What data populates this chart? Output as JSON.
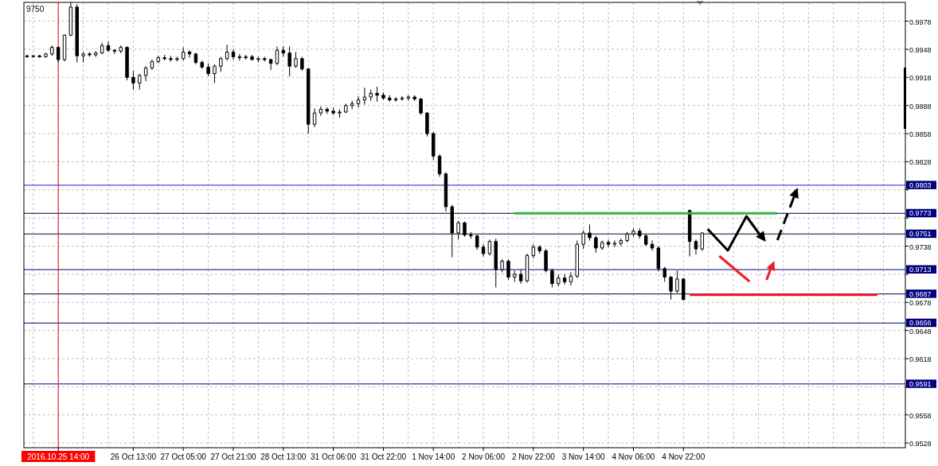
{
  "chart_data": {
    "type": "candlestick",
    "categories": [
      null,
      null,
      null,
      null,
      null,
      "2016.10.25 14:00",
      null,
      null,
      null,
      null,
      null,
      null,
      null,
      null,
      null,
      null,
      null,
      "26 Oct 13:00",
      null,
      null,
      null,
      null,
      null,
      null,
      null,
      "27 Oct 05:00",
      null,
      null,
      null,
      null,
      null,
      null,
      null,
      "27 Oct 21:00",
      null,
      null,
      null,
      null,
      null,
      null,
      null,
      "28 Oct 13:00",
      null,
      null,
      null,
      null,
      null,
      null,
      null,
      "31 Oct 06:00",
      null,
      null,
      null,
      null,
      null,
      null,
      null,
      "31 Oct 22:00",
      null,
      null,
      null,
      null,
      null,
      null,
      null,
      "1 Nov 14:00",
      null,
      null,
      null,
      null,
      null,
      null,
      null,
      "2 Nov 06:00",
      null,
      null,
      null,
      null,
      null,
      null,
      null,
      "2 Nov 22:00",
      null,
      null,
      null,
      null,
      null,
      null,
      null,
      "3 Nov 14:00",
      null,
      null,
      null,
      null,
      null,
      null,
      null,
      "4 Nov 06:00",
      null,
      null,
      null,
      null,
      null,
      null,
      null,
      "4 Nov 22:00",
      null,
      null,
      null,
      null,
      null,
      null,
      null,
      null,
      null,
      null,
      null,
      null,
      null,
      null,
      null,
      null,
      null,
      null,
      null,
      null,
      null,
      null,
      null,
      null,
      null,
      null,
      null,
      null,
      null,
      null,
      null,
      null,
      null,
      null,
      null
    ],
    "ohlc": [
      [
        0.9941,
        0.9942,
        0.9939,
        0.994
      ],
      [
        0.994,
        0.9942,
        0.9939,
        0.9941
      ],
      [
        0.9941,
        0.9942,
        0.9939,
        0.994
      ],
      [
        0.994,
        0.9944,
        0.9939,
        0.9943
      ],
      [
        0.9943,
        0.9952,
        0.9941,
        0.995
      ],
      [
        0.995,
        0.9951,
        0.9934,
        0.9937
      ],
      [
        0.9937,
        0.9964,
        0.9935,
        0.9963
      ],
      [
        0.9963,
        0.9998,
        0.9962,
        0.9993
      ],
      [
        0.9993,
        0.9996,
        0.9934,
        0.9941
      ],
      [
        0.9941,
        0.9945,
        0.9934,
        0.9943
      ],
      [
        0.9943,
        0.9945,
        0.994,
        0.9942
      ],
      [
        0.9942,
        0.9946,
        0.994,
        0.9944
      ],
      [
        0.9944,
        0.9955,
        0.9943,
        0.9952
      ],
      [
        0.9952,
        0.9956,
        0.9945,
        0.9947
      ],
      [
        0.9947,
        0.9948,
        0.9943,
        0.9946
      ],
      [
        0.9946,
        0.9952,
        0.9944,
        0.995
      ],
      [
        0.995,
        0.9951,
        0.9915,
        0.9918
      ],
      [
        0.9918,
        0.9925,
        0.9905,
        0.9912
      ],
      [
        0.9912,
        0.9922,
        0.9905,
        0.992
      ],
      [
        0.992,
        0.993,
        0.9914,
        0.9928
      ],
      [
        0.9928,
        0.9937,
        0.9926,
        0.9935
      ],
      [
        0.9935,
        0.9941,
        0.9933,
        0.9939
      ],
      [
        0.9939,
        0.9942,
        0.9936,
        0.9938
      ],
      [
        0.9938,
        0.9941,
        0.9935,
        0.9937
      ],
      [
        0.9937,
        0.994,
        0.9935,
        0.9938
      ],
      [
        0.9938,
        0.995,
        0.9936,
        0.9945
      ],
      [
        0.9945,
        0.9947,
        0.9939,
        0.9943
      ],
      [
        0.9943,
        0.9944,
        0.9932,
        0.9934
      ],
      [
        0.9934,
        0.9936,
        0.9927,
        0.9929
      ],
      [
        0.9929,
        0.9933,
        0.9919,
        0.9922
      ],
      [
        0.9922,
        0.9932,
        0.9912,
        0.993
      ],
      [
        0.993,
        0.994,
        0.9924,
        0.9938
      ],
      [
        0.9938,
        0.9953,
        0.9936,
        0.9945
      ],
      [
        0.9945,
        0.9948,
        0.9937,
        0.994
      ],
      [
        0.994,
        0.9943,
        0.9936,
        0.9939
      ],
      [
        0.9939,
        0.9942,
        0.9937,
        0.994
      ],
      [
        0.994,
        0.9942,
        0.9936,
        0.9937
      ],
      [
        0.9937,
        0.994,
        0.9934,
        0.9938
      ],
      [
        0.9938,
        0.994,
        0.9935,
        0.9937
      ],
      [
        0.9937,
        0.9938,
        0.9926,
        0.9933
      ],
      [
        0.9933,
        0.9951,
        0.9931,
        0.9947
      ],
      [
        0.9947,
        0.9951,
        0.994,
        0.9944
      ],
      [
        0.9944,
        0.9951,
        0.9919,
        0.993
      ],
      [
        0.993,
        0.9945,
        0.9928,
        0.9938
      ],
      [
        0.9938,
        0.994,
        0.9925,
        0.9927
      ],
      [
        0.9927,
        0.9928,
        0.9858,
        0.9868
      ],
      [
        0.9868,
        0.9885,
        0.9865,
        0.988
      ],
      [
        0.988,
        0.9887,
        0.9877,
        0.9884
      ],
      [
        0.9884,
        0.9886,
        0.9879,
        0.9882
      ],
      [
        0.9882,
        0.9886,
        0.9878,
        0.988
      ],
      [
        0.988,
        0.9884,
        0.9875,
        0.9881
      ],
      [
        0.9881,
        0.989,
        0.988,
        0.9888
      ],
      [
        0.9888,
        0.9893,
        0.9884,
        0.989
      ],
      [
        0.989,
        0.9898,
        0.9886,
        0.9894
      ],
      [
        0.9894,
        0.9907,
        0.9889,
        0.9897
      ],
      [
        0.9897,
        0.9905,
        0.9893,
        0.9901
      ],
      [
        0.9901,
        0.9908,
        0.9892,
        0.9899
      ],
      [
        0.9899,
        0.9902,
        0.9894,
        0.9896
      ],
      [
        0.9896,
        0.9899,
        0.9892,
        0.9894
      ],
      [
        0.9894,
        0.9897,
        0.9892,
        0.9895
      ],
      [
        0.9895,
        0.9898,
        0.9893,
        0.9896
      ],
      [
        0.9896,
        0.9899,
        0.9893,
        0.9897
      ],
      [
        0.9897,
        0.9899,
        0.9893,
        0.9895
      ],
      [
        0.9895,
        0.9896,
        0.9878,
        0.988
      ],
      [
        0.988,
        0.9881,
        0.9855,
        0.9858
      ],
      [
        0.9858,
        0.986,
        0.983,
        0.9834
      ],
      [
        0.9834,
        0.9836,
        0.9812,
        0.9815
      ],
      [
        0.9815,
        0.9817,
        0.9775,
        0.978
      ],
      [
        0.978,
        0.9782,
        0.9726,
        0.9752
      ],
      [
        0.9752,
        0.9765,
        0.9745,
        0.9763
      ],
      [
        0.9763,
        0.9764,
        0.9748,
        0.975
      ],
      [
        0.975,
        0.9753,
        0.9746,
        0.9749
      ],
      [
        0.9749,
        0.975,
        0.9734,
        0.9737
      ],
      [
        0.9737,
        0.974,
        0.9727,
        0.973
      ],
      [
        0.973,
        0.9745,
        0.9728,
        0.9743
      ],
      [
        0.9743,
        0.9746,
        0.9694,
        0.9713
      ],
      [
        0.9713,
        0.9724,
        0.971,
        0.9722
      ],
      [
        0.9722,
        0.9724,
        0.9702,
        0.9705
      ],
      [
        0.9705,
        0.9712,
        0.97,
        0.9708
      ],
      [
        0.9708,
        0.9713,
        0.9698,
        0.9701
      ],
      [
        0.9701,
        0.973,
        0.9699,
        0.9728
      ],
      [
        0.9728,
        0.974,
        0.9725,
        0.9737
      ],
      [
        0.9737,
        0.9739,
        0.973,
        0.9733
      ],
      [
        0.9733,
        0.9735,
        0.971,
        0.9712
      ],
      [
        0.9712,
        0.9714,
        0.9694,
        0.9698
      ],
      [
        0.9698,
        0.9708,
        0.9695,
        0.9704
      ],
      [
        0.9704,
        0.9708,
        0.9697,
        0.97
      ],
      [
        0.97,
        0.971,
        0.9696,
        0.9706
      ],
      [
        0.9706,
        0.9744,
        0.9704,
        0.974
      ],
      [
        0.974,
        0.9755,
        0.9735,
        0.9752
      ],
      [
        0.9752,
        0.9761,
        0.9744,
        0.9747
      ],
      [
        0.9747,
        0.9749,
        0.9731,
        0.9736
      ],
      [
        0.9736,
        0.9744,
        0.9734,
        0.9742
      ],
      [
        0.9742,
        0.9745,
        0.9737,
        0.974
      ],
      [
        0.974,
        0.9744,
        0.9737,
        0.9741
      ],
      [
        0.9741,
        0.9746,
        0.9738,
        0.9744
      ],
      [
        0.9744,
        0.9753,
        0.9742,
        0.9751
      ],
      [
        0.9751,
        0.9757,
        0.9748,
        0.9754
      ],
      [
        0.9754,
        0.9757,
        0.9746,
        0.9749
      ],
      [
        0.9749,
        0.9751,
        0.9738,
        0.974
      ],
      [
        0.974,
        0.9744,
        0.9733,
        0.9736
      ],
      [
        0.9736,
        0.9738,
        0.9711,
        0.9714
      ],
      [
        0.9714,
        0.9716,
        0.97,
        0.9705
      ],
      [
        0.9705,
        0.9706,
        0.9681,
        0.969
      ],
      [
        0.969,
        0.9712,
        0.9688,
        0.9703
      ],
      [
        0.9703,
        0.9704,
        0.968,
        0.9681
      ],
      [
        0.9776,
        0.9777,
        0.9727,
        0.9743
      ],
      [
        0.9743,
        0.9745,
        0.9729,
        0.9735
      ],
      [
        0.9735,
        0.9753,
        0.9733,
        0.9752
      ],
      null,
      null,
      null,
      null,
      null,
      null,
      null,
      null,
      null,
      null,
      null,
      null,
      null,
      null,
      null,
      null,
      null,
      null,
      null,
      null,
      null,
      null,
      null,
      null,
      null,
      null,
      null,
      null,
      null,
      null,
      null,
      null
    ],
    "series": [
      {
        "type": "line",
        "color": "#2fb34a",
        "values": [
          null,
          null,
          null,
          null,
          null,
          null,
          null,
          null,
          null,
          null,
          null,
          null,
          null,
          null,
          null,
          null,
          null,
          null,
          null,
          null,
          null,
          null,
          null,
          null,
          null,
          null,
          null,
          null,
          null,
          null,
          null,
          null,
          null,
          null,
          null,
          null,
          null,
          null,
          null,
          null,
          null,
          null,
          null,
          null,
          null,
          null,
          null,
          null,
          null,
          null,
          null,
          null,
          null,
          null,
          null,
          null,
          null,
          null,
          null,
          null,
          null,
          null,
          null,
          null,
          null,
          null,
          null,
          null,
          null,
          null,
          null,
          null,
          null,
          null,
          null,
          null,
          null,
          null,
          0.9773,
          0.9773,
          0.9773,
          0.9773,
          0.9773,
          0.9773,
          0.9773,
          0.9773,
          0.9773,
          0.9773,
          0.9773,
          0.9773,
          0.9773,
          0.9773,
          0.9773,
          0.9773,
          0.9773,
          0.9773,
          0.9773,
          0.9773,
          0.9773,
          0.9773,
          0.9773,
          0.9773,
          0.9773,
          0.9773,
          0.9773,
          0.9773,
          0.9773,
          0.9773,
          0.9773,
          0.9773,
          0.9773,
          0.9773,
          0.9773,
          0.9773,
          0.9773,
          0.9773,
          0.9773,
          0.9773,
          0.9773,
          0.9773,
          0.9773,
          null,
          null,
          null,
          null,
          null,
          null,
          null,
          null,
          null,
          null,
          null,
          null,
          null,
          null,
          null,
          null,
          null,
          null,
          null,
          null
        ]
      },
      {
        "type": "line",
        "color": "#ee1c25",
        "values": [
          null,
          null,
          null,
          null,
          null,
          null,
          null,
          null,
          null,
          null,
          null,
          null,
          null,
          null,
          null,
          null,
          null,
          null,
          null,
          null,
          null,
          null,
          null,
          null,
          null,
          null,
          null,
          null,
          null,
          null,
          null,
          null,
          null,
          null,
          null,
          null,
          null,
          null,
          null,
          null,
          null,
          null,
          null,
          null,
          null,
          null,
          null,
          null,
          null,
          null,
          null,
          null,
          null,
          null,
          null,
          null,
          null,
          null,
          null,
          null,
          null,
          null,
          null,
          null,
          null,
          null,
          null,
          null,
          null,
          null,
          null,
          null,
          null,
          null,
          null,
          null,
          null,
          null,
          null,
          null,
          null,
          null,
          null,
          null,
          null,
          null,
          null,
          null,
          null,
          null,
          null,
          null,
          null,
          null,
          null,
          null,
          null,
          null,
          null,
          null,
          null,
          null,
          null,
          null,
          null,
          null,
          0.9686,
          0.9686,
          0.9686,
          0.9686,
          0.9686,
          0.9686,
          0.9686,
          0.9686,
          0.9686,
          0.9686,
          0.9686,
          0.9686,
          0.9686,
          0.9686,
          0.9686,
          0.9686,
          0.9686,
          0.9686,
          0.9686,
          0.9686,
          0.9686,
          0.9686,
          0.9686,
          0.9686,
          0.9686,
          0.9686,
          0.9686,
          0.9686,
          0.9686,
          0.9686,
          0.9686,
          null,
          null,
          null,
          null
        ]
      }
    ],
    "ylim": [
      0.9523,
      0.9998
    ],
    "yticks": [
      0.9978,
      0.9948,
      0.9918,
      0.9888,
      0.9858,
      0.9828,
      {
        "value": 0.9798,
        "label": null
      },
      {
        "value": 0.9768,
        "label": null
      },
      0.9738,
      {
        "value": 0.9708,
        "label": null
      },
      0.9678,
      0.9648,
      0.9618,
      {
        "value": 0.9588,
        "label": null
      },
      0.9558,
      0.9528
    ],
    "grid": true,
    "ref_lines": [
      {
        "axis": "y",
        "value": 0.9803,
        "label": "0.9803",
        "color": "#2020e0"
      },
      {
        "axis": "y",
        "value": 0.9773,
        "label": "0.9773",
        "color": "#000040"
      },
      {
        "axis": "y",
        "value": 0.9751,
        "label": "0.9751",
        "color": "#000040"
      },
      {
        "axis": "y",
        "value": 0.9713,
        "label": "0.9713",
        "color": "#000080"
      },
      {
        "axis": "y",
        "value": 0.9687,
        "label": "0.9687",
        "color": "#000040"
      },
      {
        "axis": "y",
        "value": 0.9656,
        "label": "0.9656",
        "color": "#000080"
      },
      {
        "axis": "y",
        "value": 0.9591,
        "label": "0.9591",
        "color": "#000080"
      },
      {
        "axis": "x",
        "value": "2016.10.25 14:00",
        "color": "#ff0000"
      }
    ],
    "annotations": [
      "9750"
    ]
  }
}
